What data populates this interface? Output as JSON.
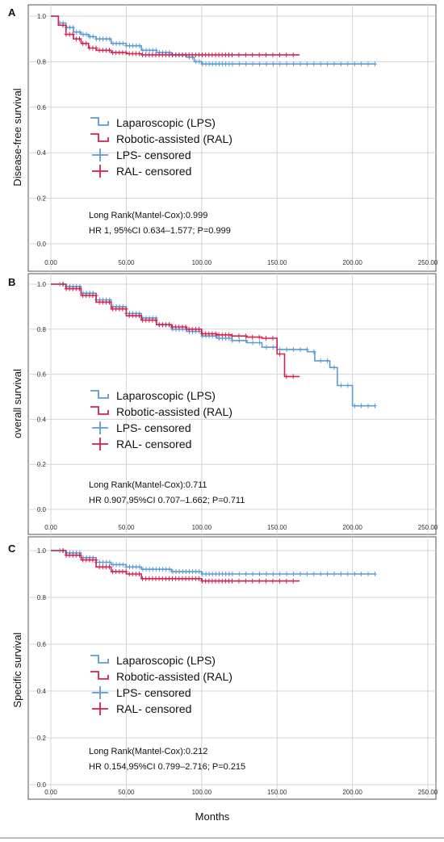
{
  "colors": {
    "lps": "#5b9bd5",
    "ral": "#d6204e",
    "grid": "#d4d4d4",
    "axis": "#555555"
  },
  "x_axis_label": "Months",
  "chart_data": [
    {
      "type": "line",
      "panel": "A",
      "ylabel": "Disease-free survival",
      "xlim": [
        0,
        250
      ],
      "ylim": [
        0,
        1.0
      ],
      "xticks": [
        "0.00",
        "50.00",
        "100.00",
        "150.00",
        "200.00",
        "250.00"
      ],
      "yticks": [
        "0.0",
        "0.2",
        "0.4",
        "0.6",
        "0.8",
        "1.0"
      ],
      "grid": true,
      "legend": [
        "Laparoscopic (LPS)",
        "Robotic-assisted (RAL)",
        "LPS- censored",
        "RAL- censored"
      ],
      "stats": [
        "Long Rank(Mantel-Cox):0.999",
        "HR 1, 95%CI 0.634–1.577; P=0.999"
      ],
      "series": [
        {
          "name": "Laparoscopic (LPS)",
          "x": [
            0,
            5,
            10,
            15,
            20,
            25,
            30,
            40,
            50,
            60,
            70,
            80,
            90,
            95,
            100,
            215
          ],
          "y": [
            1.0,
            0.97,
            0.95,
            0.93,
            0.92,
            0.91,
            0.9,
            0.88,
            0.87,
            0.85,
            0.84,
            0.83,
            0.82,
            0.8,
            0.79,
            0.79
          ]
        },
        {
          "name": "Robotic-assisted (RAL)",
          "x": [
            0,
            5,
            10,
            15,
            20,
            25,
            30,
            40,
            50,
            60,
            165
          ],
          "y": [
            1.0,
            0.96,
            0.92,
            0.9,
            0.88,
            0.86,
            0.85,
            0.84,
            0.835,
            0.83,
            0.83
          ]
        }
      ]
    },
    {
      "type": "line",
      "panel": "B",
      "ylabel": "overall survival",
      "xlim": [
        0,
        250
      ],
      "ylim": [
        0,
        1.0
      ],
      "xticks": [
        "0.00",
        "50.00",
        "100.00",
        "150.00",
        "200.00",
        "250.00"
      ],
      "yticks": [
        "0.0",
        "0.2",
        "0.4",
        "0.6",
        "0.8",
        "1.0"
      ],
      "grid": true,
      "legend": [
        "Laparoscopic (LPS)",
        "Robotic-assisted (RAL)",
        "LPS- censored",
        "RAL- censored"
      ],
      "stats": [
        "Long Rank(Mantel-Cox):0.711",
        "HR 0.907,95%CI 0.707–1.662; P=0.711"
      ],
      "series": [
        {
          "name": "Laparoscopic (LPS)",
          "x": [
            0,
            10,
            20,
            30,
            40,
            50,
            60,
            70,
            80,
            90,
            100,
            110,
            120,
            130,
            140,
            150,
            160,
            170,
            175,
            185,
            190,
            200,
            215
          ],
          "y": [
            1.0,
            0.99,
            0.96,
            0.93,
            0.9,
            0.87,
            0.85,
            0.82,
            0.8,
            0.79,
            0.77,
            0.76,
            0.75,
            0.74,
            0.72,
            0.71,
            0.71,
            0.7,
            0.66,
            0.63,
            0.55,
            0.46,
            0.46
          ]
        },
        {
          "name": "Robotic-assisted (RAL)",
          "x": [
            0,
            10,
            20,
            30,
            40,
            50,
            60,
            70,
            80,
            90,
            100,
            110,
            120,
            130,
            140,
            150,
            155,
            160,
            165
          ],
          "y": [
            1.0,
            0.98,
            0.95,
            0.92,
            0.89,
            0.86,
            0.84,
            0.82,
            0.81,
            0.8,
            0.78,
            0.775,
            0.77,
            0.765,
            0.76,
            0.69,
            0.59,
            0.59,
            0.59
          ]
        }
      ]
    },
    {
      "type": "line",
      "panel": "C",
      "ylabel": "Specific survival",
      "xlim": [
        0,
        250
      ],
      "ylim": [
        0,
        1.0
      ],
      "xticks": [
        "0.00",
        "50.00",
        "100.00",
        "150.00",
        "200.00",
        "250.00"
      ],
      "yticks": [
        "0.0",
        "0.2",
        "0.4",
        "0.6",
        "0.8",
        "1.0"
      ],
      "grid": true,
      "legend": [
        "Laparoscopic (LPS)",
        "Robotic-assisted (RAL)",
        "LPS- censored",
        "RAL- censored"
      ],
      "stats": [
        "Long Rank(Mantel-Cox):0.212",
        "HR 0.154,95%CI 0.799–2.716; P=0.215"
      ],
      "series": [
        {
          "name": "Laparoscopic (LPS)",
          "x": [
            0,
            10,
            20,
            30,
            40,
            50,
            60,
            70,
            80,
            100,
            120,
            215
          ],
          "y": [
            1.0,
            0.99,
            0.97,
            0.95,
            0.94,
            0.93,
            0.92,
            0.92,
            0.91,
            0.9,
            0.9,
            0.9
          ]
        },
        {
          "name": "Robotic-assisted (RAL)",
          "x": [
            0,
            10,
            20,
            30,
            40,
            50,
            60,
            70,
            80,
            100,
            110,
            165
          ],
          "y": [
            1.0,
            0.98,
            0.96,
            0.93,
            0.91,
            0.9,
            0.88,
            0.88,
            0.88,
            0.87,
            0.87,
            0.87
          ]
        }
      ]
    }
  ]
}
